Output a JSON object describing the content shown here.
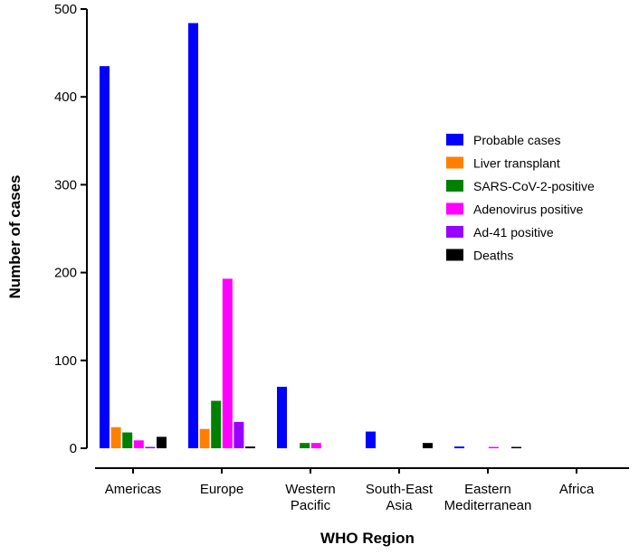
{
  "chart_data": {
    "type": "bar",
    "title": "",
    "xlabel": "WHO Region",
    "ylabel": "Number of cases",
    "ylim": [
      0,
      500
    ],
    "yticks": [
      "0",
      "100",
      "200",
      "300",
      "400",
      "500"
    ],
    "categories": [
      [
        "Americas"
      ],
      [
        "Europe"
      ],
      [
        "Western",
        "Pacific"
      ],
      [
        "South-East",
        "Asia"
      ],
      [
        "Eastern",
        "Mediterranean"
      ],
      [
        "Africa"
      ]
    ],
    "series": [
      {
        "name": "Probable cases",
        "color": "#0000ff",
        "values": [
          435,
          484,
          70,
          19,
          2,
          0
        ]
      },
      {
        "name": "Liver transplant",
        "color": "#ff8000",
        "values": [
          24,
          22,
          0,
          0,
          0,
          0
        ]
      },
      {
        "name": "SARS-CoV-2-positive",
        "color": "#008000",
        "values": [
          18,
          54,
          6,
          0,
          0,
          0
        ]
      },
      {
        "name": "Adenovirus positive",
        "color": "#ff00ff",
        "values": [
          9,
          193,
          6,
          0,
          1,
          0
        ]
      },
      {
        "name": "Ad-41 positive",
        "color": "#9900ff",
        "values": [
          1,
          30,
          0,
          0,
          0,
          0
        ]
      },
      {
        "name": "Deaths",
        "color": "#000000",
        "values": [
          13,
          2,
          0,
          6,
          1,
          0
        ]
      }
    ],
    "grid": false,
    "legend_position": "right"
  }
}
